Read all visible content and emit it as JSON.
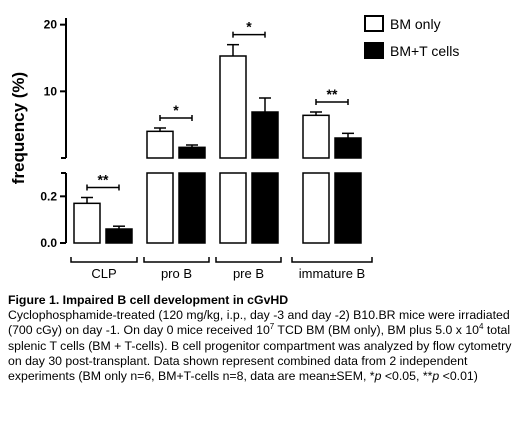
{
  "chart_data": {
    "type": "bar",
    "ylabel": "frequency (%)",
    "categories": [
      "CLP",
      "pro B",
      "pre B",
      "immature B"
    ],
    "series": [
      {
        "name": "BM only",
        "color": "#ffffff",
        "values": [
          0.17,
          4.0,
          15.3,
          6.4
        ],
        "errors": [
          0.025,
          0.5,
          1.7,
          0.5
        ]
      },
      {
        "name": "BM+T cells",
        "color": "#000000",
        "values": [
          0.06,
          1.6,
          6.9,
          3.0
        ],
        "errors": [
          0.012,
          0.35,
          2.1,
          0.7
        ]
      }
    ],
    "y_axis_lower": {
      "range": [
        0,
        0.3
      ],
      "ticks": [
        {
          "value": 0.0,
          "label": "0.0"
        },
        {
          "value": 0.2,
          "label": "0.2"
        }
      ]
    },
    "y_axis_upper": {
      "range": [
        0,
        21
      ],
      "ticks": [
        {
          "value": 10,
          "label": "10"
        },
        {
          "value": 20,
          "label": "20"
        }
      ]
    },
    "significance": [
      {
        "category": "CLP",
        "label": "**"
      },
      {
        "category": "pro B",
        "label": "*"
      },
      {
        "category": "pre B",
        "label": "*"
      },
      {
        "category": "immature B",
        "label": "**"
      }
    ],
    "legend": {
      "position": "top-right",
      "entries": [
        "BM only",
        "BM+T cells"
      ]
    }
  },
  "caption": {
    "title": "Figure 1. Impaired B cell development in cGvHD",
    "part1": "Cyclophosphamide-treated (120 mg/kg, i.p., day -3 and day -2) B10.BR mice were irradiated (700 cGy) on day -1. On day 0 mice received 10",
    "sup1": "7",
    "part2": " TCD BM (BM only), BM plus 5.0 x 10",
    "sup2": "4",
    "part3": " total splenic T cells (BM + T-cells).  B cell progenitor compartment was analyzed by flow cytometry on day 30 post-transplant. Data shown represent combined data from  2 independent experiments (BM only n=6, BM+T-cells n=8, data are mean±SEM, *",
    "p1": "p",
    "part4": " <0.05, **",
    "p2": "p",
    "part5": " <0.01)"
  }
}
